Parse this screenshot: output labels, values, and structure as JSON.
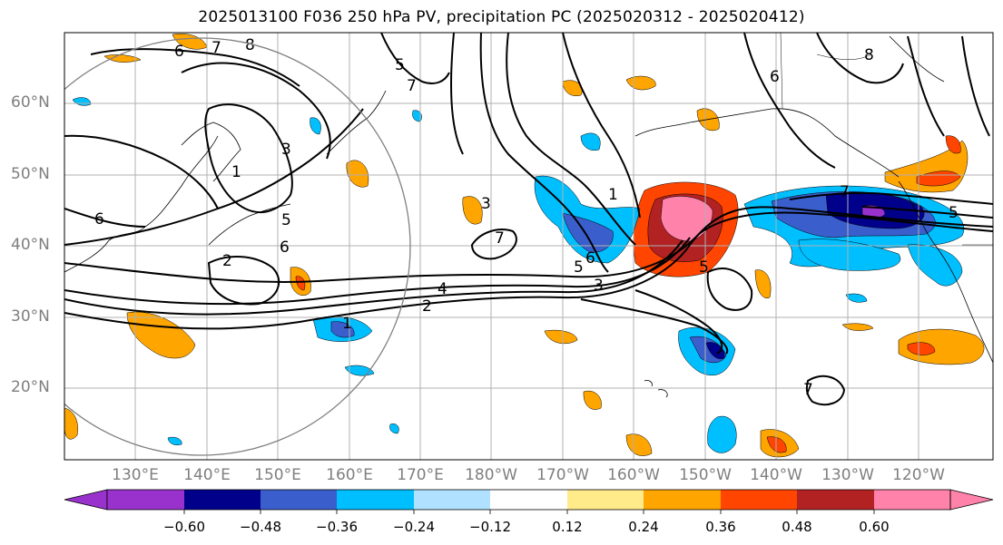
{
  "title": "2025013100 F036 250 hPa PV, precipitation PC (2025020312 - 2025020412)",
  "lat_labels": [
    "60°N",
    "50°N",
    "40°N",
    "30°N",
    "20°N"
  ],
  "lon_labels": [
    "130°E",
    "140°E",
    "150°E",
    "160°E",
    "170°E",
    "180°W",
    "170°W",
    "160°W",
    "150°W",
    "140°W",
    "130°W",
    "120°W"
  ],
  "colorbar": {
    "ticks": [
      "−0.60",
      "−0.48",
      "−0.36",
      "−0.24",
      "−0.12",
      "0.12",
      "0.24",
      "0.36",
      "0.48",
      "0.60"
    ],
    "colors": [
      "#9932cc",
      "#00008b",
      "#3a5fcd",
      "#00bfff",
      "#b0e2ff",
      "#ffffff",
      "#ffeb8a",
      "#ffa500",
      "#ff4500",
      "#b22222",
      "#ff82ab"
    ]
  },
  "contour_labels": [
    "1",
    "2",
    "3",
    "4",
    "5",
    "6",
    "7",
    "8"
  ]
}
